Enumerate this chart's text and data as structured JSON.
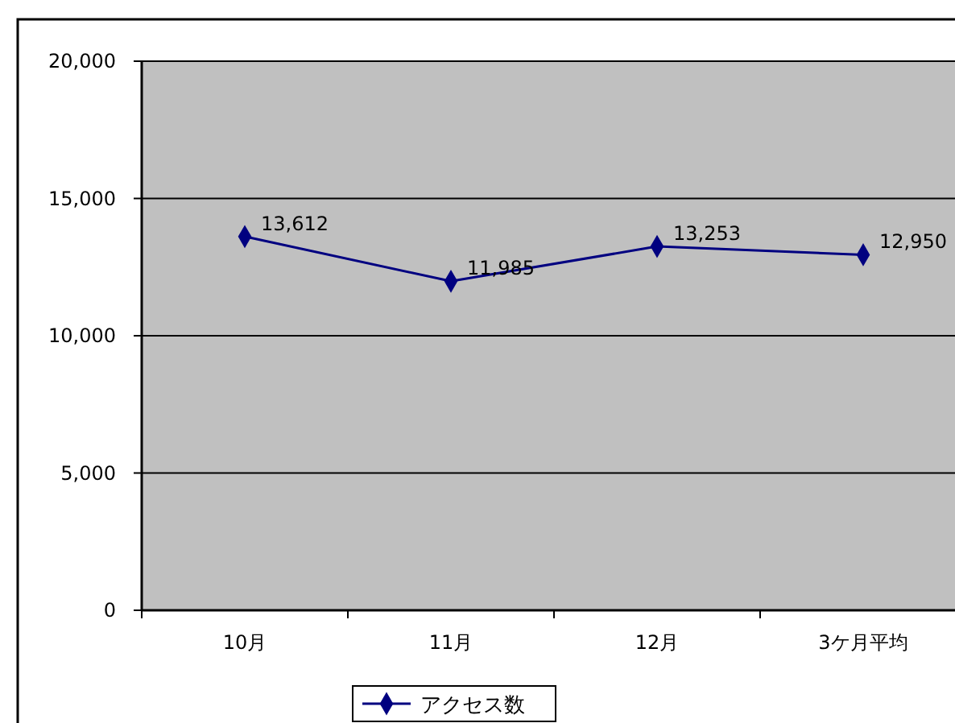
{
  "chart_data": {
    "type": "line",
    "categories": [
      "10月",
      "11月",
      "12月",
      "3ケ月平均"
    ],
    "series": [
      {
        "name": "アクセス数",
        "color": "#000080",
        "values": [
          13612,
          11985,
          13253,
          12950
        ],
        "value_labels": [
          "13,612",
          "11,985",
          "13,253",
          "12,950"
        ]
      }
    ],
    "ylim": [
      0,
      20000
    ],
    "yticks": [
      {
        "value": 0,
        "label": "0"
      },
      {
        "value": 5000,
        "label": "5,000"
      },
      {
        "value": 10000,
        "label": "10,000"
      },
      {
        "value": 15000,
        "label": "15,000"
      },
      {
        "value": 20000,
        "label": "20,000"
      }
    ],
    "grid": "y",
    "legend": "bottom",
    "marker": "diamond",
    "line_style": "solid"
  }
}
